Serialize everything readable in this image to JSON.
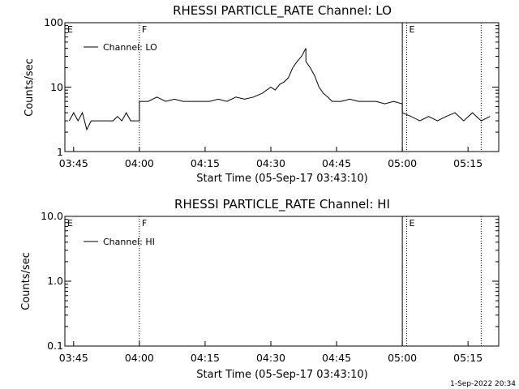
{
  "chart_data": [
    {
      "type": "line",
      "title": "RHESSI PARTICLE_RATE Channel: LO",
      "xlabel": "Start Time (05-Sep-17 03:43:10)",
      "ylabel": "Counts/sec",
      "yscale": "log",
      "ylim": [
        1,
        100
      ],
      "xlim": [
        "03:43",
        "05:22"
      ],
      "x_ticks": [
        "03:45",
        "04:00",
        "04:15",
        "04:30",
        "04:45",
        "05:00",
        "05:15"
      ],
      "y_ticks": [
        "1",
        "10",
        "100"
      ],
      "legend": {
        "entries": [
          "Channel: LO"
        ],
        "position": "top-left"
      },
      "event_markers": [
        {
          "time": "03:43",
          "label": "E",
          "style": "solid"
        },
        {
          "time": "04:00",
          "label": "F",
          "style": "dotted"
        },
        {
          "time": "05:00",
          "label": "",
          "style": "solid"
        },
        {
          "time": "05:01",
          "label": "E",
          "style": "dotted"
        },
        {
          "time": "05:18",
          "label": "",
          "style": "dotted"
        }
      ],
      "series": [
        {
          "name": "Channel: LO",
          "x": [
            "03:44",
            "03:45",
            "03:46",
            "03:47",
            "03:48",
            "03:49",
            "03:50",
            "03:51",
            "03:52",
            "03:53",
            "03:54",
            "03:55",
            "03:56",
            "03:57",
            "03:58",
            "03:59",
            "04:00",
            "04:00",
            "04:02",
            "04:04",
            "04:06",
            "04:08",
            "04:10",
            "04:12",
            "04:14",
            "04:16",
            "04:18",
            "04:20",
            "04:22",
            "04:24",
            "04:26",
            "04:28",
            "04:30",
            "04:31",
            "04:32",
            "04:33",
            "04:34",
            "04:35",
            "04:36",
            "04:37",
            "04:38",
            "04:38",
            "04:39",
            "04:40",
            "04:41",
            "04:42",
            "04:43",
            "04:44",
            "04:46",
            "04:48",
            "04:50",
            "04:52",
            "04:54",
            "04:56",
            "04:58",
            "05:00",
            "05:00",
            "05:02",
            "05:04",
            "05:06",
            "05:08",
            "05:10",
            "05:12",
            "05:14",
            "05:16",
            "05:18",
            "05:20"
          ],
          "y": [
            3,
            4,
            3,
            4,
            2.2,
            3,
            3,
            3,
            3,
            3,
            3,
            3.5,
            3,
            4,
            3,
            3,
            3,
            6,
            6,
            7,
            6,
            6.5,
            6,
            6,
            6,
            6,
            6.5,
            6,
            7,
            6.5,
            7,
            8,
            10,
            9,
            11,
            12,
            14,
            20,
            25,
            30,
            40,
            25,
            20,
            15,
            10,
            8,
            7,
            6,
            6,
            6.5,
            6,
            6,
            6,
            5.5,
            6,
            5.5,
            4,
            3.5,
            3,
            3.5,
            3,
            3.5,
            4,
            3,
            4,
            3,
            3.5
          ]
        }
      ]
    },
    {
      "type": "line",
      "title": "RHESSI PARTICLE_RATE Channel: HI",
      "xlabel": "Start Time (05-Sep-17 03:43:10)",
      "ylabel": "Counts/sec",
      "yscale": "log",
      "ylim": [
        0.1,
        10
      ],
      "xlim": [
        "03:43",
        "05:22"
      ],
      "x_ticks": [
        "03:45",
        "04:00",
        "04:15",
        "04:30",
        "04:45",
        "05:00",
        "05:15"
      ],
      "y_ticks": [
        "0.1",
        "1.0",
        "10.0"
      ],
      "legend": {
        "entries": [
          "Channel: HI"
        ],
        "position": "top-left"
      },
      "event_markers": [
        {
          "time": "03:43",
          "label": "E",
          "style": "solid"
        },
        {
          "time": "04:00",
          "label": "F",
          "style": "dotted"
        },
        {
          "time": "05:00",
          "label": "",
          "style": "solid"
        },
        {
          "time": "05:01",
          "label": "E",
          "style": "dotted"
        },
        {
          "time": "05:18",
          "label": "",
          "style": "dotted"
        }
      ],
      "series": [
        {
          "name": "Channel: HI",
          "x": [],
          "y": []
        }
      ]
    }
  ],
  "footer": {
    "timestamp": "1-Sep-2022 20:34"
  },
  "style": {
    "line_color": "#000000",
    "background": "#ffffff"
  }
}
